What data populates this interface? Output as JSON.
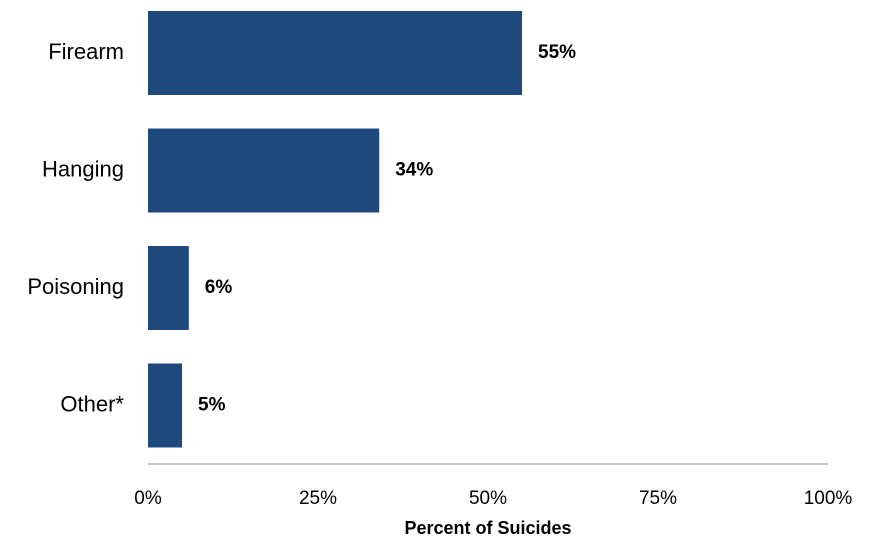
{
  "chart_data": {
    "type": "bar",
    "orientation": "horizontal",
    "categories": [
      "Firearm",
      "Hanging",
      "Poisoning",
      "Other*"
    ],
    "values": [
      55,
      34,
      6,
      5
    ],
    "value_labels": [
      "55%",
      "34%",
      "6%",
      "5%"
    ],
    "xlabel": "Percent of Suicides",
    "xlim": [
      0,
      100
    ],
    "xticks": [
      0,
      25,
      50,
      75,
      100
    ],
    "xtick_labels": [
      "0%",
      "25%",
      "50%",
      "75%",
      "100%"
    ],
    "grid": false,
    "legend": "none",
    "bar_color": "#1F497D"
  }
}
